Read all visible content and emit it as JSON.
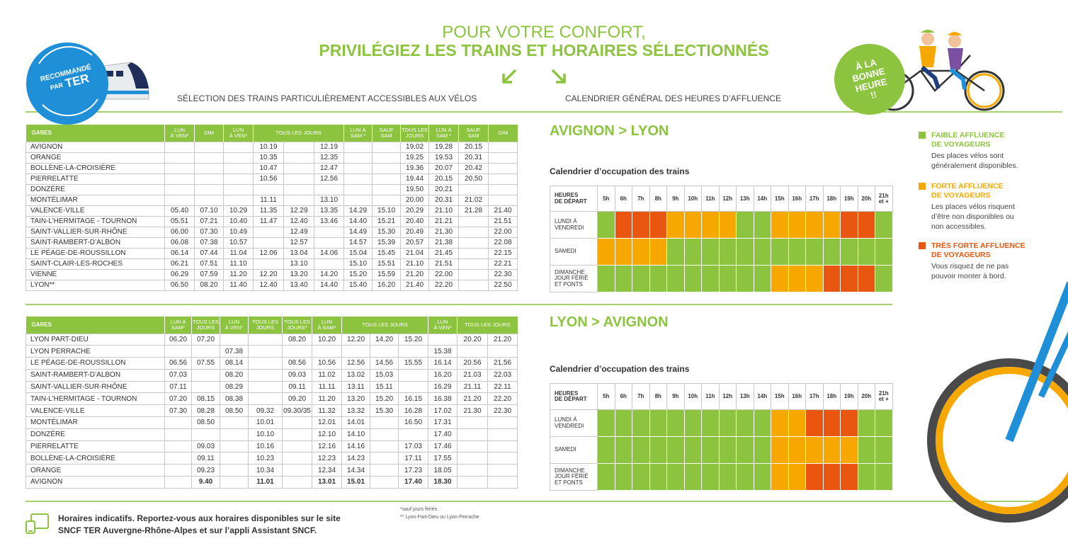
{
  "header": {
    "title_line1": "POUR VOTRE CONFORT,",
    "title_line2": "PRIVILÉGIEZ LES TRAINS ET HORAIRES SÉLECTIONNÉS",
    "left_subtitle": "SÉLECTION DES TRAINS PARTICULIÈREMENT ACCESSIBLES AUX VÉLOS",
    "right_subtitle": "CALENDRIER GÉNÉRAL DES HEURES D’AFFLUENCE",
    "badge_left": {
      "line1": "RECOMMANDÉ",
      "line2": "PAR",
      "line3": "TER"
    },
    "badge_right": {
      "line1": "À LA",
      "line2": "BONNE",
      "line3": "HEURE",
      "line4": "!!"
    }
  },
  "timetables": [
    {
      "station_header": "GARES",
      "headers": [
        {
          "label": "LUN\nÀ VEN*",
          "span": 1
        },
        {
          "label": "DIM",
          "span": 1
        },
        {
          "label": "LUN\nÀ VEN*",
          "span": 1
        },
        {
          "label": "TOUS LES JOURS",
          "span": 3
        },
        {
          "label": "LUN À\nSAM *",
          "span": 1
        },
        {
          "label": "SAUF\nSAM",
          "span": 1
        },
        {
          "label": "TOUS LES\nJOURS",
          "span": 1
        },
        {
          "label": "LUN À\nSAM *",
          "span": 1
        },
        {
          "label": "SAUF\nSAM",
          "span": 1
        },
        {
          "label": "DIM",
          "span": 1
        }
      ],
      "rows": [
        {
          "station": "AVIGNON",
          "times": [
            null,
            null,
            null,
            "10.19",
            null,
            "12.19",
            null,
            null,
            "19.02",
            "19.28",
            "20.15",
            null
          ]
        },
        {
          "station": "ORANGE",
          "times": [
            null,
            null,
            null,
            "10.35",
            null,
            "12.35",
            null,
            null,
            "19.25",
            "19.53",
            "20.31",
            null
          ]
        },
        {
          "station": "BOLLÈNE-LA-CROISIÈRE",
          "times": [
            null,
            null,
            null,
            "10.47",
            null,
            "12.47",
            null,
            null,
            "19.36",
            "20.07",
            "20.42",
            null
          ]
        },
        {
          "station": "PIERRELATTE",
          "times": [
            null,
            null,
            null,
            "10.56",
            null,
            "12.56",
            null,
            null,
            "19.44",
            "20.15",
            "20.50",
            null
          ]
        },
        {
          "station": "DONZÈRE",
          "times": [
            null,
            null,
            null,
            null,
            null,
            null,
            null,
            null,
            "19.50",
            "20.21",
            null,
            null
          ]
        },
        {
          "station": "MONTÉLIMAR",
          "times": [
            null,
            null,
            null,
            "11.11",
            null,
            "13.10",
            null,
            null,
            "20.00",
            "20.31",
            "21.02",
            null
          ]
        },
        {
          "station": "VALENCE-VILLE",
          "times": [
            "05.40",
            "07.10",
            "10.29",
            "11.35",
            "12.29",
            "13.35",
            "14.29",
            "15.10",
            "20.29",
            "21.10",
            "21.28",
            "21.40"
          ]
        },
        {
          "station": "TAIN-L’HERMITAGE - TOURNON",
          "times": [
            "05.51",
            "07.21",
            "10.40",
            "11.47",
            "12.40",
            "13.46",
            "14.40",
            "15.21",
            "20.40",
            "21.21",
            null,
            "21.51"
          ]
        },
        {
          "station": "SAINT-VALLIER-SUR-RHÔNE",
          "times": [
            "06.00",
            "07.30",
            "10.49",
            null,
            "12.49",
            null,
            "14.49",
            "15.30",
            "20.49",
            "21.30",
            null,
            "22.00"
          ]
        },
        {
          "station": "SAINT-RAMBERT-D’ALBON",
          "times": [
            "06.08",
            "07.38",
            "10.57",
            null,
            "12.57",
            null,
            "14.57",
            "15.39",
            "20.57",
            "21.38",
            null,
            "22.08"
          ]
        },
        {
          "station": "LE PÉAGE-DE-ROUSSILLON",
          "times": [
            "06.14",
            "07.44",
            "11.04",
            "12.06",
            "13.04",
            "14.06",
            "15.04",
            "15.45",
            "21.04",
            "21.45",
            null,
            "22.15"
          ]
        },
        {
          "station": "SAINT-CLAIR-LES-ROCHES",
          "times": [
            "06.21",
            "07.51",
            "11.10",
            null,
            "13.10",
            null,
            "15.10",
            "15.51",
            "21.10",
            "21.51",
            null,
            "22.21"
          ]
        },
        {
          "station": "VIENNE",
          "times": [
            "06.29",
            "07.59",
            "11.20",
            "12.20",
            "13.20",
            "14.20",
            "15.20",
            "15.59",
            "21.20",
            "22.00",
            null,
            "22.30"
          ]
        },
        {
          "station": "LYON**",
          "times": [
            "06.50",
            "08.20",
            "11.40",
            "12.40",
            "13.40",
            "14.40",
            "15.40",
            "16.20",
            "21.40",
            "22.20",
            null,
            "22.50"
          ]
        }
      ]
    },
    {
      "station_header": "GARES",
      "headers": [
        {
          "label": "LUN À\nSAM*",
          "span": 1
        },
        {
          "label": "TOUS LES\nJOURS",
          "span": 1
        },
        {
          "label": "LUN\nÀ VEN*",
          "span": 1
        },
        {
          "label": "TOUS LES\nJOURS",
          "span": 1
        },
        {
          "label": "TOUS LES\nJOURS*",
          "span": 1
        },
        {
          "label": "LUN\nÀ SAM*",
          "span": 1
        },
        {
          "label": "TOUS LES JOURS",
          "span": 3
        },
        {
          "label": "LUN\nÀ VEN*",
          "span": 1
        },
        {
          "label": "TOUS LES JOURS",
          "span": 2
        }
      ],
      "rows": [
        {
          "station": "LYON PART-DIEU",
          "times": [
            "06.20",
            "07.20",
            null,
            null,
            "08.20",
            "10.20",
            "12.20",
            "14.20",
            "15.20",
            null,
            "20.20",
            "21.20"
          ]
        },
        {
          "station": "LYON PERRACHE",
          "times": [
            null,
            null,
            "07.38",
            null,
            null,
            null,
            null,
            null,
            null,
            "15.38",
            null,
            null
          ]
        },
        {
          "station": "LE PÉAGE-DE-ROUSSILLON",
          "times": [
            "06.56",
            "07.55",
            "08.14",
            null,
            "08.56",
            "10.56",
            "12.56",
            "14.56",
            "15.55",
            "16.14",
            "20.56",
            "21.56"
          ]
        },
        {
          "station": "SAINT-RAMBERT-D’ALBON",
          "times": [
            "07.03",
            null,
            "08.20",
            null,
            "09.03",
            "11.02",
            "13.02",
            "15.03",
            null,
            "16.20",
            "21.03",
            "22.03"
          ]
        },
        {
          "station": "SAINT-VALLIER-SUR-RHÔNE",
          "times": [
            "07.11",
            null,
            "08.29",
            null,
            "09.11",
            "11.11",
            "13.11",
            "15.11",
            null,
            "16.29",
            "21.11",
            "22.11"
          ]
        },
        {
          "station": "TAIN-L’HERMITAGE - TOURNON",
          "times": [
            "07.20",
            "08.15",
            "08.38",
            null,
            "09.20",
            "11.20",
            "13.20",
            "15.20",
            "16.15",
            "16.38",
            "21.20",
            "22.20"
          ]
        },
        {
          "station": "VALENCE-VILLE",
          "times": [
            "07.30",
            "08.28",
            "08.50",
            "09.32",
            "09.30/35",
            "11.32",
            "13.32",
            "15.30",
            "16.28",
            "17.02",
            "21.30",
            "22.30"
          ]
        },
        {
          "station": "MONTÉLIMAR",
          "times": [
            null,
            "08.50",
            null,
            "10.01",
            null,
            "12.01",
            "14.01",
            null,
            "16.50",
            "17.31",
            null,
            null
          ]
        },
        {
          "station": "DONZÈRE",
          "times": [
            null,
            null,
            null,
            "10.10",
            null,
            "12.10",
            "14.10",
            null,
            null,
            "17.40",
            null,
            null
          ]
        },
        {
          "station": "PIERRELATTE",
          "times": [
            null,
            "09.03",
            null,
            "10.16",
            null,
            "12.16",
            "14.16",
            null,
            "17.03",
            "17.46",
            null,
            null
          ]
        },
        {
          "station": "BOLLÈNE-LA-CROISIÈRE",
          "times": [
            null,
            "09.11",
            null,
            "10.23",
            null,
            "12.23",
            "14.23",
            null,
            "17.11",
            "17.55",
            null,
            null
          ]
        },
        {
          "station": "ORANGE",
          "times": [
            null,
            "09.23",
            null,
            "10.34",
            null,
            "12.34",
            "14.34",
            null,
            "17.23",
            "18.05",
            null,
            null
          ]
        },
        {
          "station": "AVIGNON",
          "times": [
            null,
            "9.40",
            null,
            "11.01",
            null,
            "13.01",
            "15.01",
            null,
            "17.40",
            "18.30",
            null,
            null
          ]
        }
      ]
    }
  ],
  "occupancy": {
    "legend": [
      {
        "title": "FAIBLE AFFLUENCE\nDE VOYAGEURS",
        "description": "Des places vélos sont\ngénéralement disponibles.",
        "color": "#8cc43f"
      },
      {
        "title": "FORTE AFFLUENCE\nDE VOYAGEURS",
        "description": "Les places vélos risquent\nd’être non disponibles ou\nnon accessibles.",
        "color": "#f6a800"
      },
      {
        "title": "TRÈS FORTE AFFLUENCE\nDE VOYAGEURS",
        "description": "Vous risquez de ne pas\npouvoir monter à bord.",
        "color": "#e8560f"
      }
    ],
    "calendars": [
      {
        "route": "AVIGNON > LYON",
        "subtitle": "Calendrier d’occupation des trains",
        "corner_label": "HEURES\nDE DÉPART",
        "hours": [
          "5h",
          "6h",
          "7h",
          "8h",
          "9h",
          "10h",
          "11h",
          "12h",
          "13h",
          "14h",
          "15h",
          "16h",
          "17h",
          "18h",
          "19h",
          "20h",
          "21h\net +"
        ],
        "rows": [
          {
            "label": "LUNDI À\nVENDREDI",
            "levels": [
              0,
              2,
              2,
              2,
              1,
              1,
              1,
              1,
              0,
              0,
              1,
              1,
              1,
              1,
              2,
              2,
              0
            ]
          },
          {
            "label": "SAMEDI",
            "levels": [
              1,
              1,
              1,
              1,
              0,
              0,
              0,
              0,
              0,
              0,
              0,
              0,
              0,
              0,
              0,
              0,
              0
            ]
          },
          {
            "label": "DIMANCHE\nJOUR FÉRIÉ\nET PONTS",
            "levels": [
              0,
              0,
              0,
              0,
              0,
              0,
              0,
              0,
              0,
              0,
              1,
              1,
              1,
              2,
              2,
              2,
              0
            ]
          }
        ]
      },
      {
        "route": "LYON > AVIGNON",
        "subtitle": "Calendrier d’occupation des trains",
        "corner_label": "HEURES\nDE DÉPART",
        "hours": [
          "5h",
          "6h",
          "7h",
          "8h",
          "9h",
          "10h",
          "11h",
          "12h",
          "13h",
          "14h",
          "15h",
          "16h",
          "17h",
          "18h",
          "19h",
          "20h",
          "21h\net +"
        ],
        "rows": [
          {
            "label": "LUNDI À\nVENDREDI",
            "levels": [
              0,
              0,
              0,
              0,
              0,
              0,
              0,
              0,
              0,
              0,
              1,
              1,
              2,
              2,
              2,
              0,
              0
            ]
          },
          {
            "label": "SAMEDI",
            "levels": [
              0,
              0,
              0,
              0,
              0,
              0,
              0,
              0,
              0,
              0,
              1,
              1,
              1,
              1,
              1,
              0,
              0
            ]
          },
          {
            "label": "DIMANCHE\nJOUR FÉRIÉ\nET PONTS",
            "levels": [
              0,
              0,
              0,
              0,
              0,
              0,
              0,
              0,
              0,
              0,
              1,
              1,
              2,
              2,
              2,
              0,
              0
            ]
          }
        ]
      }
    ]
  },
  "footer": {
    "notice": "Horaires indicatifs. Reportez-vous aux horaires disponibles sur le site\nSNCF TER Auvergne-Rhône-Alpes et sur l’appli Assistant SNCF.",
    "footnote1": "*sauf jours fériés",
    "footnote2": "** Lyon-Part-Dieu ou Lyon-Perrache"
  }
}
